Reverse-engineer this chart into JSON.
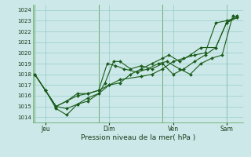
{
  "bg_color": "#cce8e8",
  "grid_color": "#99cccc",
  "line_color": "#1a5c1a",
  "marker_color": "#1a5c1a",
  "title": "Pression niveau de la mer( hPa )",
  "ylim": [
    1013.5,
    1024.5
  ],
  "yticks": [
    1014,
    1015,
    1016,
    1017,
    1018,
    1019,
    1020,
    1021,
    1022,
    1023,
    1024
  ],
  "xtick_labels": [
    "Jeu",
    "Dim",
    "Ven",
    "Sam"
  ],
  "xtick_positions": [
    0.5,
    3.5,
    6.5,
    9.0
  ],
  "series1_x": [
    0.0,
    0.5,
    1.0,
    1.5,
    2.0,
    2.5,
    3.0,
    3.5,
    4.0,
    5.0,
    5.5,
    6.0,
    6.5,
    7.0,
    7.5,
    8.0,
    8.5,
    9.0,
    9.5
  ],
  "series1_y": [
    1018.0,
    1016.5,
    1014.8,
    1014.2,
    1015.2,
    1015.5,
    1016.2,
    1017.0,
    1017.5,
    1017.8,
    1018.0,
    1018.5,
    1019.2,
    1019.5,
    1019.8,
    1020.0,
    1022.8,
    1023.0,
    1023.3
  ],
  "series2_x": [
    0.0,
    0.5,
    1.0,
    1.5,
    2.0,
    2.5,
    3.0,
    3.3,
    3.7,
    4.0,
    4.5,
    5.0,
    5.5,
    6.0,
    6.5,
    7.0,
    7.5,
    8.0,
    8.5,
    9.0,
    9.5
  ],
  "series2_y": [
    1018.0,
    1016.5,
    1015.0,
    1014.8,
    1015.2,
    1015.8,
    1016.2,
    1017.2,
    1019.2,
    1019.2,
    1018.5,
    1018.8,
    1018.5,
    1019.0,
    1018.0,
    1018.5,
    1019.2,
    1019.8,
    1020.5,
    1022.8,
    1023.3
  ],
  "series3_x": [
    0.0,
    0.5,
    1.0,
    1.5,
    2.0,
    2.5,
    3.0,
    3.4,
    3.8,
    4.2,
    4.8,
    5.3,
    5.8,
    6.2,
    6.8,
    7.3,
    7.8,
    8.3,
    8.8,
    9.3
  ],
  "series3_y": [
    1018.0,
    1016.5,
    1015.0,
    1015.5,
    1016.2,
    1016.2,
    1016.5,
    1019.0,
    1018.8,
    1018.5,
    1018.2,
    1018.5,
    1019.0,
    1019.2,
    1018.5,
    1018.0,
    1019.0,
    1019.5,
    1019.8,
    1023.5
  ],
  "series4_x": [
    0.0,
    0.5,
    1.0,
    1.5,
    2.0,
    2.5,
    3.0,
    3.5,
    4.0,
    4.5,
    5.0,
    5.5,
    6.0,
    6.3,
    6.8,
    7.3,
    7.8,
    8.5,
    9.0,
    9.5
  ],
  "series4_y": [
    1018.0,
    1016.5,
    1015.0,
    1015.5,
    1016.0,
    1016.2,
    1016.5,
    1017.0,
    1017.2,
    1018.0,
    1018.5,
    1019.0,
    1019.5,
    1019.8,
    1019.2,
    1019.8,
    1020.5,
    1020.5,
    1022.8,
    1023.5
  ],
  "vlines": [
    0.0,
    3.0,
    6.0,
    9.0
  ],
  "xlim": [
    -0.1,
    9.8
  ]
}
